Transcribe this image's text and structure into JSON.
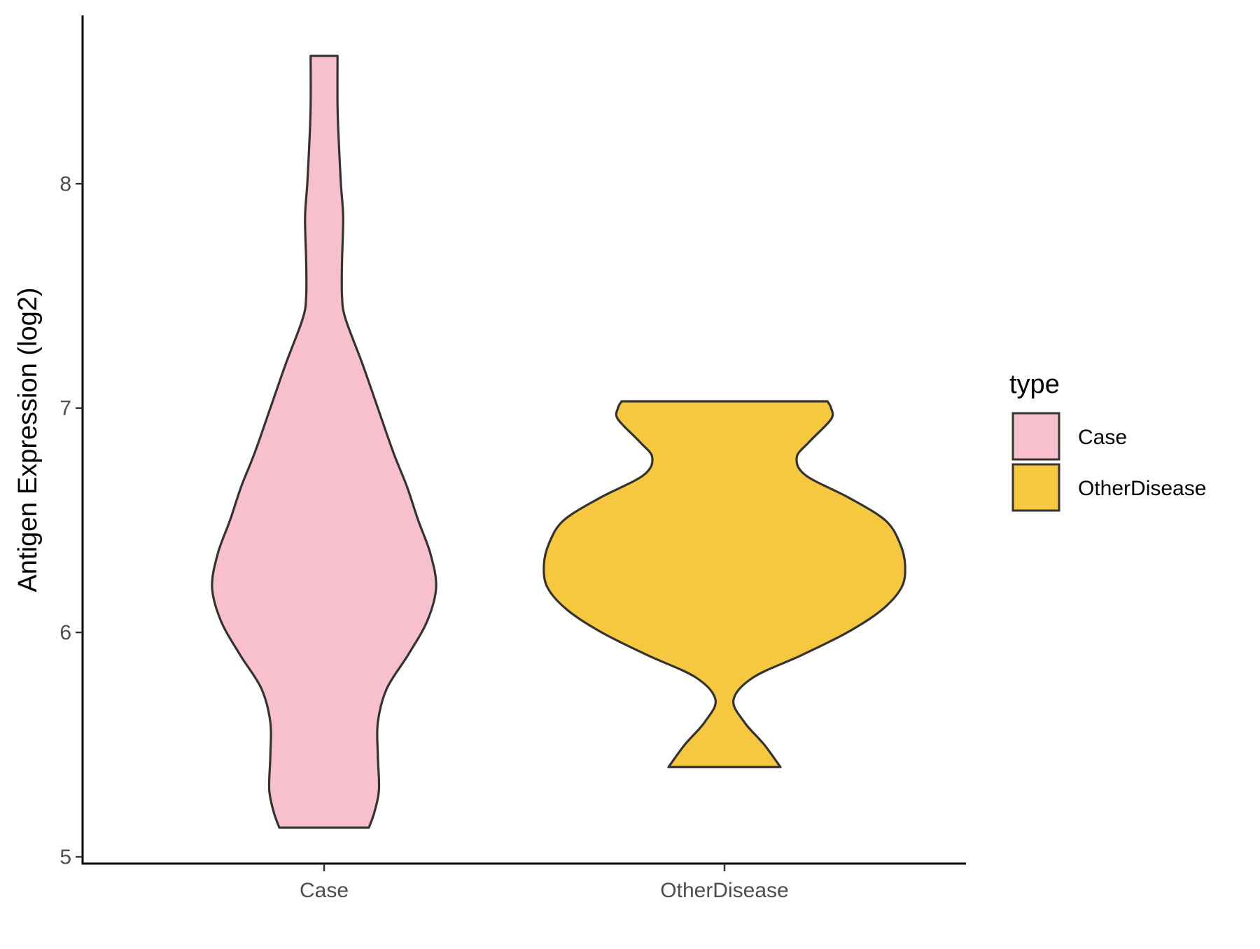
{
  "chart_data": {
    "type": "violin",
    "title": "",
    "xlabel": "",
    "ylabel": "Antigen Expression (log2)",
    "ylim": [
      4.97,
      8.75
    ],
    "yticks": [
      5,
      6,
      7,
      8
    ],
    "categories": [
      "Case",
      "OtherDisease"
    ],
    "colors": {
      "Case": "#f8c0cc",
      "OtherDisease": "#f6c83f",
      "outline": "#333333"
    },
    "legend": {
      "title": "type",
      "position": "right",
      "entries": [
        "Case",
        "OtherDisease"
      ]
    },
    "series": [
      {
        "name": "Case",
        "range": [
          5.13,
          8.57
        ],
        "profile": [
          [
            5.13,
            0.4
          ],
          [
            5.2,
            0.45
          ],
          [
            5.3,
            0.49
          ],
          [
            5.45,
            0.48
          ],
          [
            5.6,
            0.48
          ],
          [
            5.75,
            0.56
          ],
          [
            5.9,
            0.75
          ],
          [
            6.05,
            0.92
          ],
          [
            6.2,
            1.0
          ],
          [
            6.35,
            0.95
          ],
          [
            6.5,
            0.84
          ],
          [
            6.65,
            0.74
          ],
          [
            6.8,
            0.62
          ],
          [
            7.0,
            0.48
          ],
          [
            7.2,
            0.34
          ],
          [
            7.4,
            0.19
          ],
          [
            7.5,
            0.16
          ],
          [
            7.65,
            0.16
          ],
          [
            7.85,
            0.17
          ],
          [
            8.0,
            0.15
          ],
          [
            8.2,
            0.13
          ],
          [
            8.35,
            0.12
          ],
          [
            8.57,
            0.12
          ]
        ]
      },
      {
        "name": "OtherDisease",
        "range": [
          5.4,
          7.03
        ],
        "profile": [
          [
            5.4,
            0.31
          ],
          [
            5.5,
            0.22
          ],
          [
            5.6,
            0.11
          ],
          [
            5.7,
            0.05
          ],
          [
            5.8,
            0.16
          ],
          [
            5.9,
            0.43
          ],
          [
            6.0,
            0.68
          ],
          [
            6.1,
            0.87
          ],
          [
            6.2,
            0.98
          ],
          [
            6.3,
            1.0
          ],
          [
            6.4,
            0.97
          ],
          [
            6.5,
            0.89
          ],
          [
            6.6,
            0.69
          ],
          [
            6.7,
            0.45
          ],
          [
            6.78,
            0.4
          ],
          [
            6.85,
            0.47
          ],
          [
            6.95,
            0.59
          ],
          [
            7.0,
            0.59
          ],
          [
            7.03,
            0.57
          ]
        ]
      }
    ]
  }
}
